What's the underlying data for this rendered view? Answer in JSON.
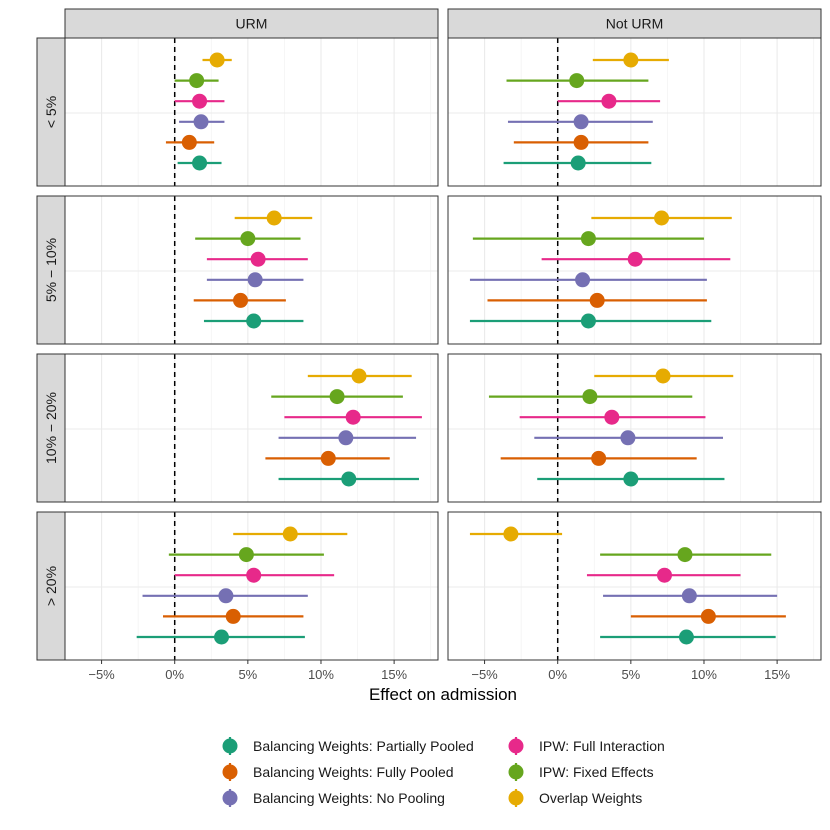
{
  "chart_data": {
    "type": "forest",
    "xlabel": "Effect on admission",
    "xlim": [
      -7.5,
      18
    ],
    "x_ticks": [
      -5,
      0,
      5,
      10,
      15
    ],
    "x_tick_labels": [
      "−5%",
      "0%",
      "5%",
      "10%",
      "15%"
    ],
    "reference_line": 0,
    "columns": [
      "URM",
      "Not URM"
    ],
    "rows": [
      "< 5%",
      "5% − 10%",
      "10% − 20%",
      "> 20%"
    ],
    "methods": [
      {
        "name": "Overlap Weights",
        "color": "#E6AB02"
      },
      {
        "name": "IPW: Fixed Effects",
        "color": "#66A61E"
      },
      {
        "name": "IPW: Full Interaction",
        "color": "#E7298A"
      },
      {
        "name": "Balancing Weights: No Pooling",
        "color": "#7570B3"
      },
      {
        "name": "Balancing Weights: Fully Pooled",
        "color": "#D95F02"
      },
      {
        "name": "Balancing Weights: Partially Pooled",
        "color": "#1B9E77"
      }
    ],
    "legend_order": [
      "Balancing Weights: Partially Pooled",
      "Balancing Weights: Fully Pooled",
      "Balancing Weights: No Pooling",
      "IPW: Full Interaction",
      "IPW: Fixed Effects",
      "Overlap Weights"
    ],
    "legend_position": "bottom",
    "panels": [
      {
        "column": "URM",
        "row": "< 5%",
        "estimates": [
          {
            "method": "Overlap Weights",
            "est": 2.9,
            "lo": 1.9,
            "hi": 3.9
          },
          {
            "method": "IPW: Fixed Effects",
            "est": 1.5,
            "lo": 0.0,
            "hi": 3.0
          },
          {
            "method": "IPW: Full Interaction",
            "est": 1.7,
            "lo": 0.0,
            "hi": 3.4
          },
          {
            "method": "Balancing Weights: No Pooling",
            "est": 1.8,
            "lo": 0.3,
            "hi": 3.4
          },
          {
            "method": "Balancing Weights: Fully Pooled",
            "est": 1.0,
            "lo": -0.6,
            "hi": 2.7
          },
          {
            "method": "Balancing Weights: Partially Pooled",
            "est": 1.7,
            "lo": 0.2,
            "hi": 3.2
          }
        ]
      },
      {
        "column": "Not URM",
        "row": "< 5%",
        "estimates": [
          {
            "method": "Overlap Weights",
            "est": 5.0,
            "lo": 2.4,
            "hi": 7.6
          },
          {
            "method": "IPW: Fixed Effects",
            "est": 1.3,
            "lo": -3.5,
            "hi": 6.2
          },
          {
            "method": "IPW: Full Interaction",
            "est": 3.5,
            "lo": 0.0,
            "hi": 7.0
          },
          {
            "method": "Balancing Weights: No Pooling",
            "est": 1.6,
            "lo": -3.4,
            "hi": 6.5
          },
          {
            "method": "Balancing Weights: Fully Pooled",
            "est": 1.6,
            "lo": -3.0,
            "hi": 6.2
          },
          {
            "method": "Balancing Weights: Partially Pooled",
            "est": 1.4,
            "lo": -3.7,
            "hi": 6.4
          }
        ]
      },
      {
        "column": "URM",
        "row": "5% − 10%",
        "estimates": [
          {
            "method": "Overlap Weights",
            "est": 6.8,
            "lo": 4.1,
            "hi": 9.4
          },
          {
            "method": "IPW: Fixed Effects",
            "est": 5.0,
            "lo": 1.4,
            "hi": 8.6
          },
          {
            "method": "IPW: Full Interaction",
            "est": 5.7,
            "lo": 2.2,
            "hi": 9.1
          },
          {
            "method": "Balancing Weights: No Pooling",
            "est": 5.5,
            "lo": 2.2,
            "hi": 8.8
          },
          {
            "method": "Balancing Weights: Fully Pooled",
            "est": 4.5,
            "lo": 1.3,
            "hi": 7.6
          },
          {
            "method": "Balancing Weights: Partially Pooled",
            "est": 5.4,
            "lo": 2.0,
            "hi": 8.8
          }
        ]
      },
      {
        "column": "Not URM",
        "row": "5% − 10%",
        "estimates": [
          {
            "method": "Overlap Weights",
            "est": 7.1,
            "lo": 2.3,
            "hi": 11.9
          },
          {
            "method": "IPW: Fixed Effects",
            "est": 2.1,
            "lo": -5.8,
            "hi": 10.0
          },
          {
            "method": "IPW: Full Interaction",
            "est": 5.3,
            "lo": -1.1,
            "hi": 11.8
          },
          {
            "method": "Balancing Weights: No Pooling",
            "est": 1.7,
            "lo": -6.0,
            "hi": 10.2
          },
          {
            "method": "Balancing Weights: Fully Pooled",
            "est": 2.7,
            "lo": -4.8,
            "hi": 10.2
          },
          {
            "method": "Balancing Weights: Partially Pooled",
            "est": 2.1,
            "lo": -6.0,
            "hi": 10.5
          }
        ]
      },
      {
        "column": "URM",
        "row": "10% − 20%",
        "estimates": [
          {
            "method": "Overlap Weights",
            "est": 12.6,
            "lo": 9.1,
            "hi": 16.2
          },
          {
            "method": "IPW: Fixed Effects",
            "est": 11.1,
            "lo": 6.6,
            "hi": 15.6
          },
          {
            "method": "IPW: Full Interaction",
            "est": 12.2,
            "lo": 7.5,
            "hi": 16.9
          },
          {
            "method": "Balancing Weights: No Pooling",
            "est": 11.7,
            "lo": 7.1,
            "hi": 16.5
          },
          {
            "method": "Balancing Weights: Fully Pooled",
            "est": 10.5,
            "lo": 6.2,
            "hi": 14.7
          },
          {
            "method": "Balancing Weights: Partially Pooled",
            "est": 11.9,
            "lo": 7.1,
            "hi": 16.7
          }
        ]
      },
      {
        "column": "Not URM",
        "row": "10% − 20%",
        "estimates": [
          {
            "method": "Overlap Weights",
            "est": 7.2,
            "lo": 2.5,
            "hi": 12.0
          },
          {
            "method": "IPW: Fixed Effects",
            "est": 2.2,
            "lo": -4.7,
            "hi": 9.2
          },
          {
            "method": "IPW: Full Interaction",
            "est": 3.7,
            "lo": -2.6,
            "hi": 10.1
          },
          {
            "method": "Balancing Weights: No Pooling",
            "est": 4.8,
            "lo": -1.6,
            "hi": 11.3
          },
          {
            "method": "Balancing Weights: Fully Pooled",
            "est": 2.8,
            "lo": -3.9,
            "hi": 9.5
          },
          {
            "method": "Balancing Weights: Partially Pooled",
            "est": 5.0,
            "lo": -1.4,
            "hi": 11.4
          }
        ]
      },
      {
        "column": "URM",
        "row": "> 20%",
        "estimates": [
          {
            "method": "Overlap Weights",
            "est": 7.9,
            "lo": 4.0,
            "hi": 11.8
          },
          {
            "method": "IPW: Fixed Effects",
            "est": 4.9,
            "lo": -0.4,
            "hi": 10.2
          },
          {
            "method": "IPW: Full Interaction",
            "est": 5.4,
            "lo": 0.0,
            "hi": 10.9
          },
          {
            "method": "Balancing Weights: No Pooling",
            "est": 3.5,
            "lo": -2.2,
            "hi": 9.1
          },
          {
            "method": "Balancing Weights: Fully Pooled",
            "est": 4.0,
            "lo": -0.8,
            "hi": 8.8
          },
          {
            "method": "Balancing Weights: Partially Pooled",
            "est": 3.2,
            "lo": -2.6,
            "hi": 8.9
          }
        ]
      },
      {
        "column": "Not URM",
        "row": "> 20%",
        "estimates": [
          {
            "method": "Overlap Weights",
            "est": -3.2,
            "lo": -6.0,
            "hi": 0.3
          },
          {
            "method": "IPW: Fixed Effects",
            "est": 8.7,
            "lo": 2.9,
            "hi": 14.6
          },
          {
            "method": "IPW: Full Interaction",
            "est": 7.3,
            "lo": 2.0,
            "hi": 12.5
          },
          {
            "method": "Balancing Weights: No Pooling",
            "est": 9.0,
            "lo": 3.1,
            "hi": 15.0
          },
          {
            "method": "Balancing Weights: Fully Pooled",
            "est": 10.3,
            "lo": 5.0,
            "hi": 15.6
          },
          {
            "method": "Balancing Weights: Partially Pooled",
            "est": 8.8,
            "lo": 2.9,
            "hi": 14.9
          }
        ]
      }
    ]
  }
}
